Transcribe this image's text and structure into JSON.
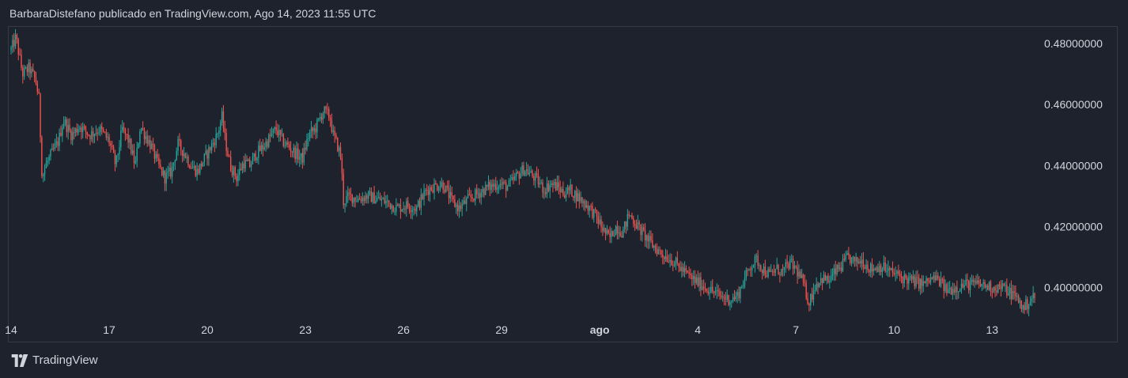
{
  "header": {
    "text": "BarbaraDistefano publicado en TradingView.com, Ago 14, 2023 11:55 UTC"
  },
  "footer": {
    "brand": "TradingView"
  },
  "colors": {
    "background": "#1e222d",
    "up": "#26a69a",
    "down": "#ef5350",
    "border": "#363a45",
    "text": "#d1d4dc"
  },
  "chart_data": {
    "type": "candlestick",
    "ylim": [
      0.3905,
      0.4855
    ],
    "y_ticks": [
      "0.48000000",
      "0.46000000",
      "0.44000000",
      "0.42000000",
      "0.40000000"
    ],
    "y_tick_values": [
      0.48,
      0.46,
      0.44,
      0.42,
      0.4
    ],
    "x_ticks": [
      {
        "label": "14",
        "day": 0
      },
      {
        "label": "17",
        "day": 3
      },
      {
        "label": "20",
        "day": 6
      },
      {
        "label": "23",
        "day": 9
      },
      {
        "label": "26",
        "day": 12
      },
      {
        "label": "29",
        "day": 15
      },
      {
        "label": "ago",
        "day": 18,
        "bold": true
      },
      {
        "label": "4",
        "day": 21
      },
      {
        "label": "7",
        "day": 24
      },
      {
        "label": "10",
        "day": 27
      },
      {
        "label": "13",
        "day": 30
      }
    ],
    "xlim_days": [
      0,
      31.3
    ],
    "price_path": [
      [
        0.0,
        0.478
      ],
      [
        0.15,
        0.482
      ],
      [
        0.35,
        0.47
      ],
      [
        0.55,
        0.472
      ],
      [
        0.75,
        0.468
      ],
      [
        0.85,
        0.462
      ],
      [
        0.95,
        0.436
      ],
      [
        1.05,
        0.44
      ],
      [
        1.25,
        0.444
      ],
      [
        1.45,
        0.448
      ],
      [
        1.6,
        0.455
      ],
      [
        1.85,
        0.45
      ],
      [
        2.1,
        0.453
      ],
      [
        2.4,
        0.45
      ],
      [
        2.7,
        0.452
      ],
      [
        3.0,
        0.448
      ],
      [
        3.2,
        0.44
      ],
      [
        3.4,
        0.452
      ],
      [
        3.6,
        0.448
      ],
      [
        3.8,
        0.44
      ],
      [
        3.95,
        0.453
      ],
      [
        4.1,
        0.45
      ],
      [
        4.3,
        0.446
      ],
      [
        4.5,
        0.44
      ],
      [
        4.7,
        0.436
      ],
      [
        4.9,
        0.438
      ],
      [
        5.1,
        0.447
      ],
      [
        5.3,
        0.444
      ],
      [
        5.5,
        0.44
      ],
      [
        5.7,
        0.438
      ],
      [
        5.9,
        0.442
      ],
      [
        6.1,
        0.446
      ],
      [
        6.3,
        0.45
      ],
      [
        6.45,
        0.456
      ],
      [
        6.55,
        0.448
      ],
      [
        6.7,
        0.44
      ],
      [
        6.9,
        0.436
      ],
      [
        7.1,
        0.441
      ],
      [
        7.3,
        0.44
      ],
      [
        7.5,
        0.444
      ],
      [
        7.7,
        0.446
      ],
      [
        7.9,
        0.449
      ],
      [
        8.1,
        0.452
      ],
      [
        8.3,
        0.448
      ],
      [
        8.5,
        0.446
      ],
      [
        8.7,
        0.444
      ],
      [
        8.9,
        0.442
      ],
      [
        9.1,
        0.45
      ],
      [
        9.3,
        0.452
      ],
      [
        9.55,
        0.458
      ],
      [
        9.75,
        0.456
      ],
      [
        9.85,
        0.45
      ],
      [
        10.0,
        0.446
      ],
      [
        10.1,
        0.442
      ],
      [
        10.15,
        0.428
      ],
      [
        10.35,
        0.43
      ],
      [
        10.6,
        0.429
      ],
      [
        10.9,
        0.43
      ],
      [
        11.2,
        0.429
      ],
      [
        11.5,
        0.428
      ],
      [
        11.8,
        0.426
      ],
      [
        12.1,
        0.427
      ],
      [
        12.4,
        0.426
      ],
      [
        12.7,
        0.432
      ],
      [
        12.9,
        0.433
      ],
      [
        13.2,
        0.434
      ],
      [
        13.5,
        0.428
      ],
      [
        13.7,
        0.426
      ],
      [
        14.0,
        0.429
      ],
      [
        14.3,
        0.431
      ],
      [
        14.6,
        0.433
      ],
      [
        14.9,
        0.434
      ],
      [
        15.2,
        0.433
      ],
      [
        15.5,
        0.437
      ],
      [
        15.7,
        0.439
      ],
      [
        15.9,
        0.437
      ],
      [
        16.1,
        0.435
      ],
      [
        16.3,
        0.432
      ],
      [
        16.5,
        0.434
      ],
      [
        16.7,
        0.433
      ],
      [
        16.9,
        0.431
      ],
      [
        17.1,
        0.432
      ],
      [
        17.3,
        0.43
      ],
      [
        17.5,
        0.428
      ],
      [
        17.7,
        0.426
      ],
      [
        17.9,
        0.423
      ],
      [
        18.1,
        0.419
      ],
      [
        18.3,
        0.416
      ],
      [
        18.5,
        0.42
      ],
      [
        18.7,
        0.418
      ],
      [
        18.9,
        0.424
      ],
      [
        19.1,
        0.421
      ],
      [
        19.3,
        0.418
      ],
      [
        19.6,
        0.414
      ],
      [
        19.9,
        0.411
      ],
      [
        20.2,
        0.409
      ],
      [
        20.5,
        0.406
      ],
      [
        20.8,
        0.403
      ],
      [
        21.1,
        0.401
      ],
      [
        21.4,
        0.399
      ],
      [
        21.7,
        0.397
      ],
      [
        22.0,
        0.396
      ],
      [
        22.2,
        0.397
      ],
      [
        22.4,
        0.402
      ],
      [
        22.6,
        0.407
      ],
      [
        22.8,
        0.409
      ],
      [
        23.0,
        0.406
      ],
      [
        23.2,
        0.404
      ],
      [
        23.4,
        0.406
      ],
      [
        23.6,
        0.405
      ],
      [
        23.8,
        0.408
      ],
      [
        24.0,
        0.406
      ],
      [
        24.2,
        0.402
      ],
      [
        24.4,
        0.395
      ],
      [
        24.6,
        0.401
      ],
      [
        24.8,
        0.403
      ],
      [
        25.0,
        0.402
      ],
      [
        25.2,
        0.405
      ],
      [
        25.4,
        0.407
      ],
      [
        25.6,
        0.41
      ],
      [
        25.8,
        0.408
      ],
      [
        26.0,
        0.409
      ],
      [
        26.3,
        0.406
      ],
      [
        26.6,
        0.407
      ],
      [
        26.9,
        0.405
      ],
      [
        27.1,
        0.404
      ],
      [
        27.3,
        0.403
      ],
      [
        27.6,
        0.402
      ],
      [
        27.9,
        0.401
      ],
      [
        28.2,
        0.403
      ],
      [
        28.4,
        0.402
      ],
      [
        28.6,
        0.399
      ],
      [
        28.9,
        0.4
      ],
      [
        29.2,
        0.401
      ],
      [
        29.6,
        0.401
      ],
      [
        30.0,
        0.4
      ],
      [
        30.3,
        0.4
      ],
      [
        30.6,
        0.398
      ],
      [
        30.8,
        0.396
      ],
      [
        30.95,
        0.393
      ],
      [
        31.1,
        0.395
      ],
      [
        31.25,
        0.397
      ],
      [
        31.3,
        0.396
      ]
    ]
  }
}
